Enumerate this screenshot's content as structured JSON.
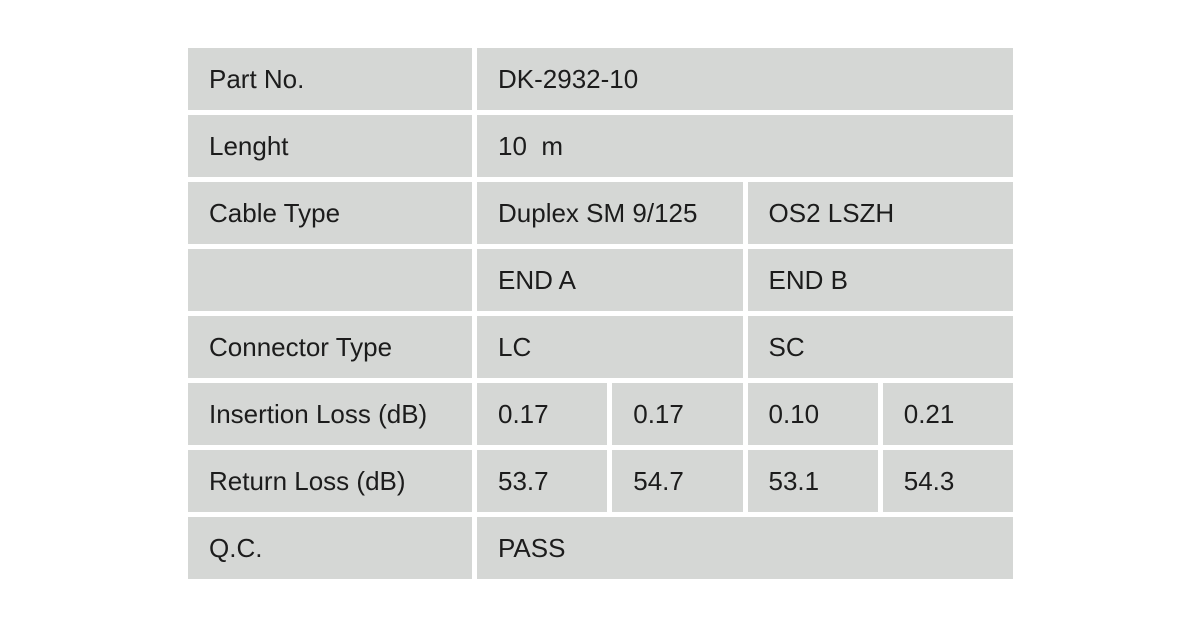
{
  "colors": {
    "page_bg": "#ffffff",
    "cell_bg": "#d5d7d5",
    "text": "#1c1c1c"
  },
  "table": {
    "rows": [
      {
        "label": "Part No.",
        "values": [
          "DK-2932-10"
        ]
      },
      {
        "label": "Lenght",
        "values": [
          "10  m"
        ]
      },
      {
        "label": "Cable Type",
        "values": [
          "Duplex SM 9/125",
          "OS2 LSZH"
        ]
      },
      {
        "label": "",
        "values": [
          "END A",
          "END B"
        ]
      },
      {
        "label": "Connector Type",
        "values": [
          "LC",
          "SC"
        ]
      },
      {
        "label": "Insertion Loss (dB)",
        "values": [
          "0.17",
          "0.17",
          "0.10",
          "0.21"
        ]
      },
      {
        "label": "Return Loss (dB)",
        "values": [
          "53.7",
          "54.7",
          "53.1",
          "54.3"
        ]
      },
      {
        "label": "Q.C.",
        "values": [
          "PASS"
        ]
      }
    ]
  }
}
